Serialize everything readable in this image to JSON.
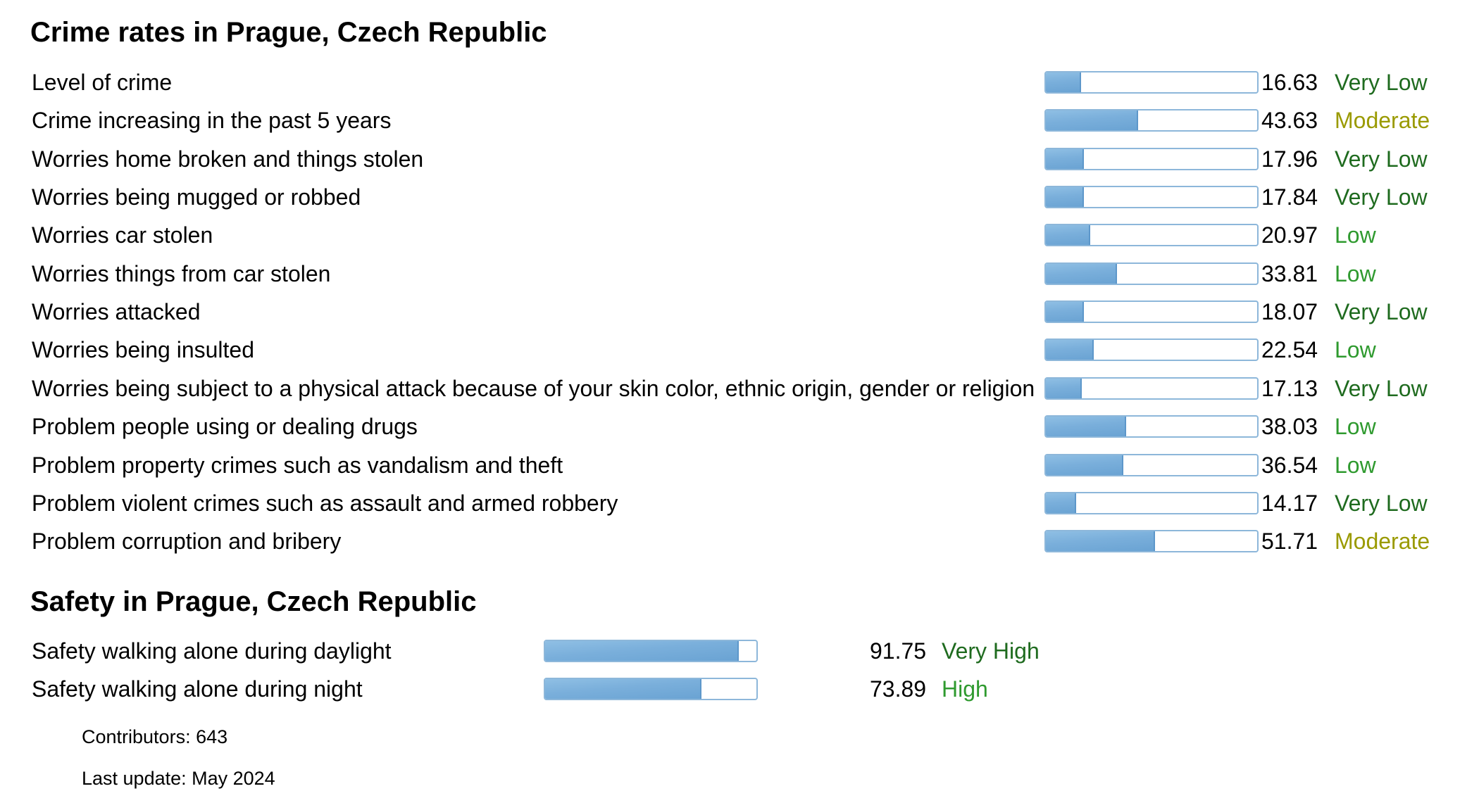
{
  "crime_section": {
    "title": "Crime rates in Prague, Czech Republic",
    "rows": [
      {
        "label": "Level of crime",
        "value": "16.63",
        "percent": 16.63,
        "rating": "Very Low",
        "rating_color": "#1f6b1f"
      },
      {
        "label": "Crime increasing in the past 5 years",
        "value": "43.63",
        "percent": 43.63,
        "rating": "Moderate",
        "rating_color": "#9a9a00"
      },
      {
        "label": "Worries home broken and things stolen",
        "value": "17.96",
        "percent": 17.96,
        "rating": "Very Low",
        "rating_color": "#1f6b1f"
      },
      {
        "label": "Worries being mugged or robbed",
        "value": "17.84",
        "percent": 17.84,
        "rating": "Very Low",
        "rating_color": "#1f6b1f"
      },
      {
        "label": "Worries car stolen",
        "value": "20.97",
        "percent": 20.97,
        "rating": "Low",
        "rating_color": "#2f9a2f"
      },
      {
        "label": "Worries things from car stolen",
        "value": "33.81",
        "percent": 33.81,
        "rating": "Low",
        "rating_color": "#2f9a2f"
      },
      {
        "label": "Worries attacked",
        "value": "18.07",
        "percent": 18.07,
        "rating": "Very Low",
        "rating_color": "#1f6b1f"
      },
      {
        "label": "Worries being insulted",
        "value": "22.54",
        "percent": 22.54,
        "rating": "Low",
        "rating_color": "#2f9a2f"
      },
      {
        "label": "Worries being subject to a physical attack because of your skin color, ethnic origin, gender or religion",
        "value": "17.13",
        "percent": 17.13,
        "rating": "Very Low",
        "rating_color": "#1f6b1f"
      },
      {
        "label": "Problem people using or dealing drugs",
        "value": "38.03",
        "percent": 38.03,
        "rating": "Low",
        "rating_color": "#2f9a2f"
      },
      {
        "label": "Problem property crimes such as vandalism and theft",
        "value": "36.54",
        "percent": 36.54,
        "rating": "Low",
        "rating_color": "#2f9a2f"
      },
      {
        "label": "Problem violent crimes such as assault and armed robbery",
        "value": "14.17",
        "percent": 14.17,
        "rating": "Very Low",
        "rating_color": "#1f6b1f"
      },
      {
        "label": "Problem corruption and bribery",
        "value": "51.71",
        "percent": 51.71,
        "rating": "Moderate",
        "rating_color": "#9a9a00"
      }
    ]
  },
  "safety_section": {
    "title": "Safety in Prague, Czech Republic",
    "rows": [
      {
        "label": "Safety walking alone during daylight",
        "value": "91.75",
        "percent": 91.75,
        "rating": "Very High",
        "rating_color": "#1f6b1f"
      },
      {
        "label": "Safety walking alone during night",
        "value": "73.89",
        "percent": 73.89,
        "rating": "High",
        "rating_color": "#2f9a2f"
      }
    ]
  },
  "footer": {
    "contributors": "Contributors: 643",
    "last_update": "Last update: May 2024"
  }
}
